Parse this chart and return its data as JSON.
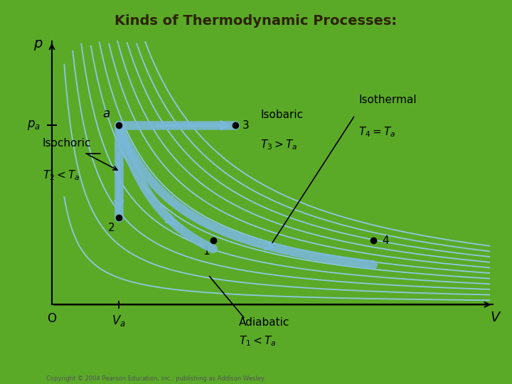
{
  "title": "Kinds of Thermodynamic Processes:",
  "title_fontsize": 14,
  "title_color": "#2d2200",
  "bg_outer": "#5aaa28",
  "bg_inner": "#ffffff",
  "xlabel": "V",
  "ylabel": "p",
  "point_a": [
    1.0,
    3.5
  ],
  "point_2": [
    1.0,
    1.7
  ],
  "point_1": [
    2.3,
    1.25
  ],
  "point_3": [
    2.6,
    3.5
  ],
  "point_4": [
    4.5,
    1.25
  ],
  "isothermal_T_count": 11,
  "isothermal_color": "#8ec8e0",
  "isothermal_lw": 1.3,
  "process_color": "#7ab8d8",
  "process_lw": 9,
  "process_alpha": 0.9,
  "xmin": 0.0,
  "xmax": 6.2,
  "ymin": 0.0,
  "ymax": 5.2,
  "Va_x": 1.0,
  "pa_y": 3.5,
  "gamma": 1.4
}
